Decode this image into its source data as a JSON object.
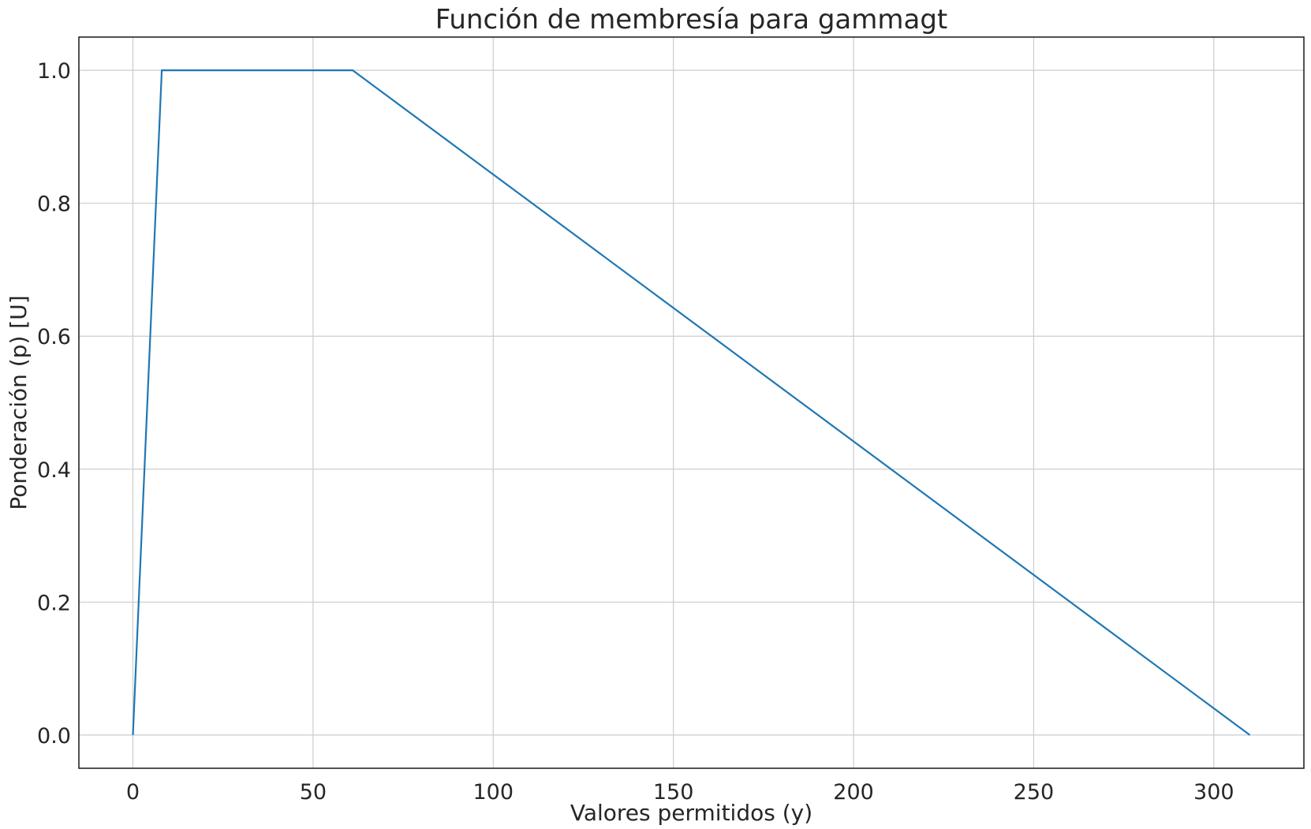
{
  "chart_data": {
    "type": "line",
    "title": "Función de membresía para gammagt",
    "xlabel": "Valores permitidos (y)",
    "ylabel": "Ponderación (p) [U]",
    "xlim": [
      -15,
      325
    ],
    "ylim": [
      -0.05,
      1.05
    ],
    "xticks": [
      0,
      50,
      100,
      150,
      200,
      250,
      300
    ],
    "xtick_labels": [
      "0",
      "50",
      "100",
      "150",
      "200",
      "250",
      "300"
    ],
    "yticks": [
      0.0,
      0.2,
      0.4,
      0.6,
      0.8,
      1.0
    ],
    "ytick_labels": [
      "0.0",
      "0.2",
      "0.4",
      "0.6",
      "0.8",
      "1.0"
    ],
    "grid": true,
    "legend": "none",
    "series": [
      {
        "color": "#1f77b4",
        "x": [
          0,
          8,
          61,
          310
        ],
        "y": [
          0.0,
          1.0,
          1.0,
          0.0
        ]
      }
    ]
  }
}
